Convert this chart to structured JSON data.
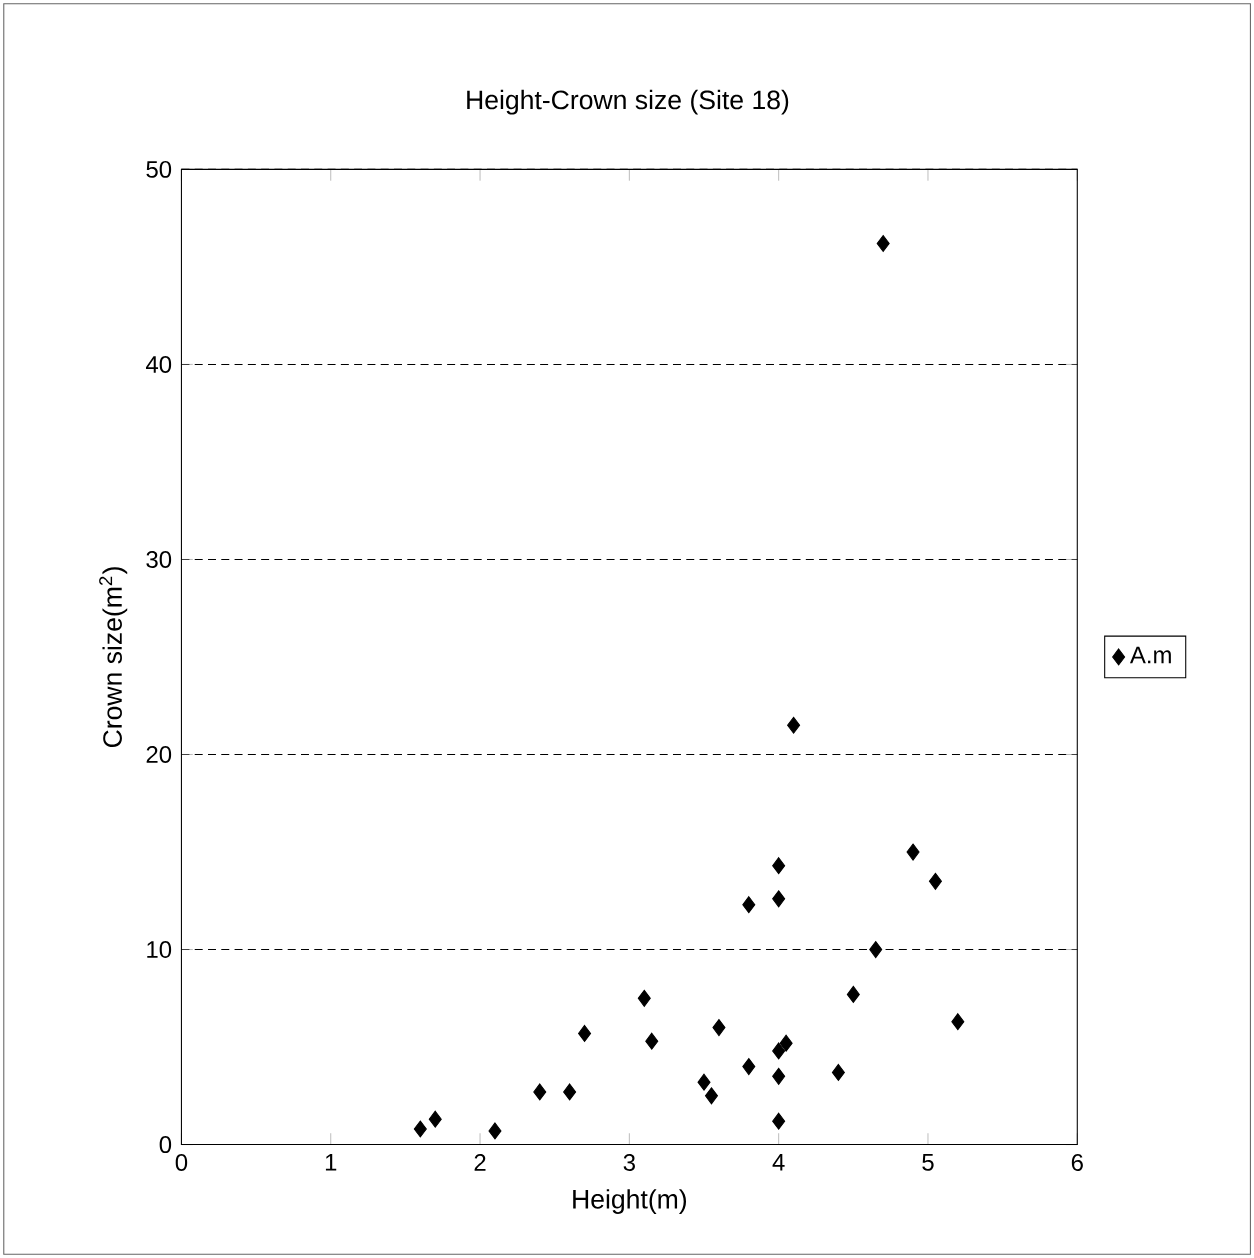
{
  "chart_data": {
    "type": "scatter",
    "title": "Height-Crown size (Site 18)",
    "xlabel": "Height(m)",
    "ylabel": "Crown size(m$^{2}$)",
    "xlim": [
      0,
      6
    ],
    "xticks": [
      0,
      1,
      2,
      3,
      4,
      5,
      6
    ],
    "ylim": [
      0,
      50
    ],
    "yticks": [
      0,
      10,
      20,
      30,
      40,
      50
    ],
    "grid": "y",
    "legend": "right",
    "marker": "diamond",
    "series": [
      {
        "name": "A.m",
        "color": "#000000",
        "x": [
          1.6,
          1.7,
          2.1,
          2.4,
          2.6,
          2.7,
          3.1,
          3.15,
          3.5,
          3.55,
          3.6,
          3.8,
          3.8,
          4.0,
          4.0,
          4.0,
          4.05,
          4.0,
          4.0,
          4.1,
          4.4,
          4.5,
          4.65,
          4.7,
          4.9,
          5.05,
          5.2
        ],
        "values": [
          0.8,
          1.3,
          0.7,
          2.7,
          2.7,
          5.7,
          7.5,
          5.3,
          3.2,
          2.5,
          6.0,
          4.0,
          12.3,
          14.3,
          12.6,
          4.8,
          5.2,
          3.5,
          1.2,
          21.5,
          3.7,
          7.7,
          10.0,
          46.2,
          15.0,
          13.5,
          6.3
        ]
      }
    ]
  }
}
